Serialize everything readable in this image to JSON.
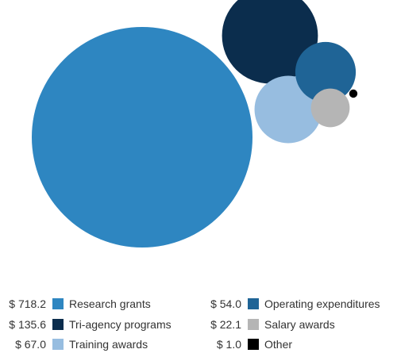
{
  "chart_data": {
    "type": "bubble",
    "title": "",
    "series": [
      {
        "name": "Research grants",
        "value": 718.2,
        "value_label": "$ 718.2",
        "color": "#2e86c1"
      },
      {
        "name": "Tri-agency programs",
        "value": 135.6,
        "value_label": "$ 135.6",
        "color": "#0b2d4d"
      },
      {
        "name": "Training awards",
        "value": 67.0,
        "value_label": "$ 67.0",
        "color": "#97bde0"
      },
      {
        "name": "Operating expenditures",
        "value": 54.0,
        "value_label": "$ 54.0",
        "color": "#1f6496"
      },
      {
        "name": "Salary awards",
        "value": 22.1,
        "value_label": "$ 22.1",
        "color": "#b5b5b5"
      },
      {
        "name": "Other",
        "value": 1.0,
        "value_label": "$ 1.0",
        "color": "#000000"
      }
    ],
    "legend_position": "bottom"
  }
}
